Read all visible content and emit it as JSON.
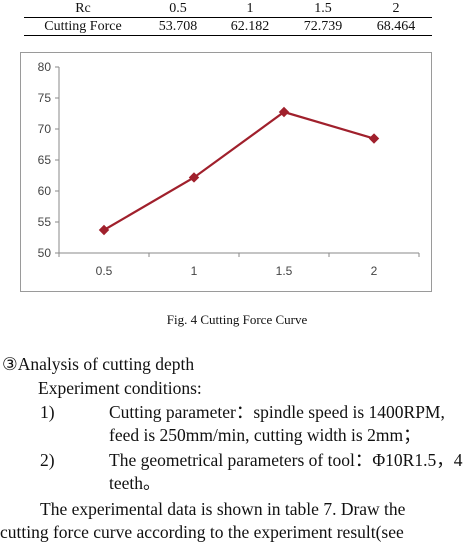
{
  "table": {
    "row1": [
      "Rc",
      "0.5",
      "1",
      "1.5",
      "2"
    ],
    "row2": [
      "Cutting Force",
      "53.708",
      "62.182",
      "72.739",
      "68.464"
    ]
  },
  "chart_data": {
    "type": "line",
    "categories": [
      "0.5",
      "1",
      "1.5",
      "2"
    ],
    "series": [
      {
        "values": [
          53.708,
          62.182,
          72.739,
          68.464
        ]
      }
    ],
    "ylim": [
      50,
      80
    ],
    "yticks": [
      "50",
      "55",
      "60",
      "65",
      "70",
      "75",
      "80"
    ],
    "grid": false,
    "line_color": "#a0202c"
  },
  "caption": "Fig. 4 Cutting Force Curve",
  "section": {
    "heading": "③Analysis of cutting depth",
    "conditions": "Experiment conditions:",
    "item1_num": "1)",
    "item1_text": "Cutting parameter：spindle speed is 1400RPM,",
    "item1_cont": "feed is 250mm/min, cutting width is 2mm；",
    "item2_num": "2)",
    "item2_text": "The geometrical parameters of tool：Φ10R1.5，4",
    "item2_cont": "teeth。",
    "para_line1": "The experimental data is shown in table 7. Draw the",
    "para_line2": "cutting force curve according to the experiment result(see"
  }
}
